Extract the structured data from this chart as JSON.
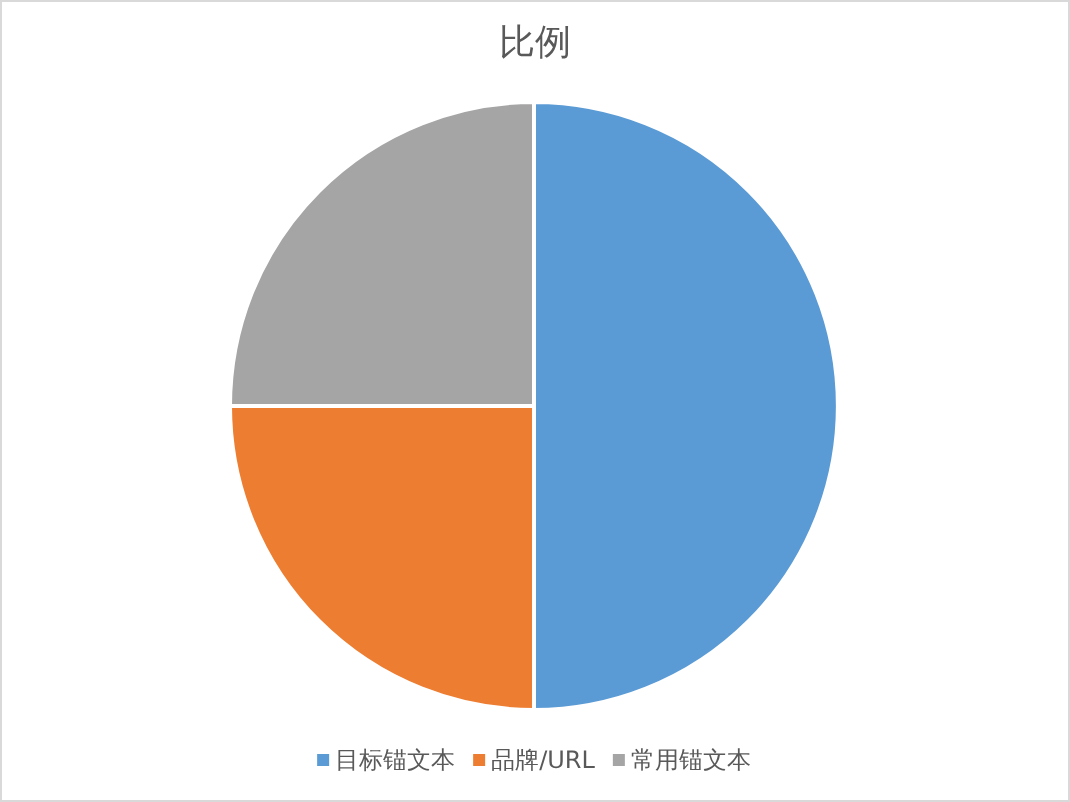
{
  "chart_data": {
    "type": "pie",
    "title": "比例",
    "categories": [
      "目标锚文本",
      "品牌/URL",
      "常用锚文本"
    ],
    "values": [
      50,
      25,
      25
    ],
    "colors": [
      "#5b9bd5",
      "#ed7d31",
      "#a5a5a5"
    ],
    "legend": "bottom"
  }
}
